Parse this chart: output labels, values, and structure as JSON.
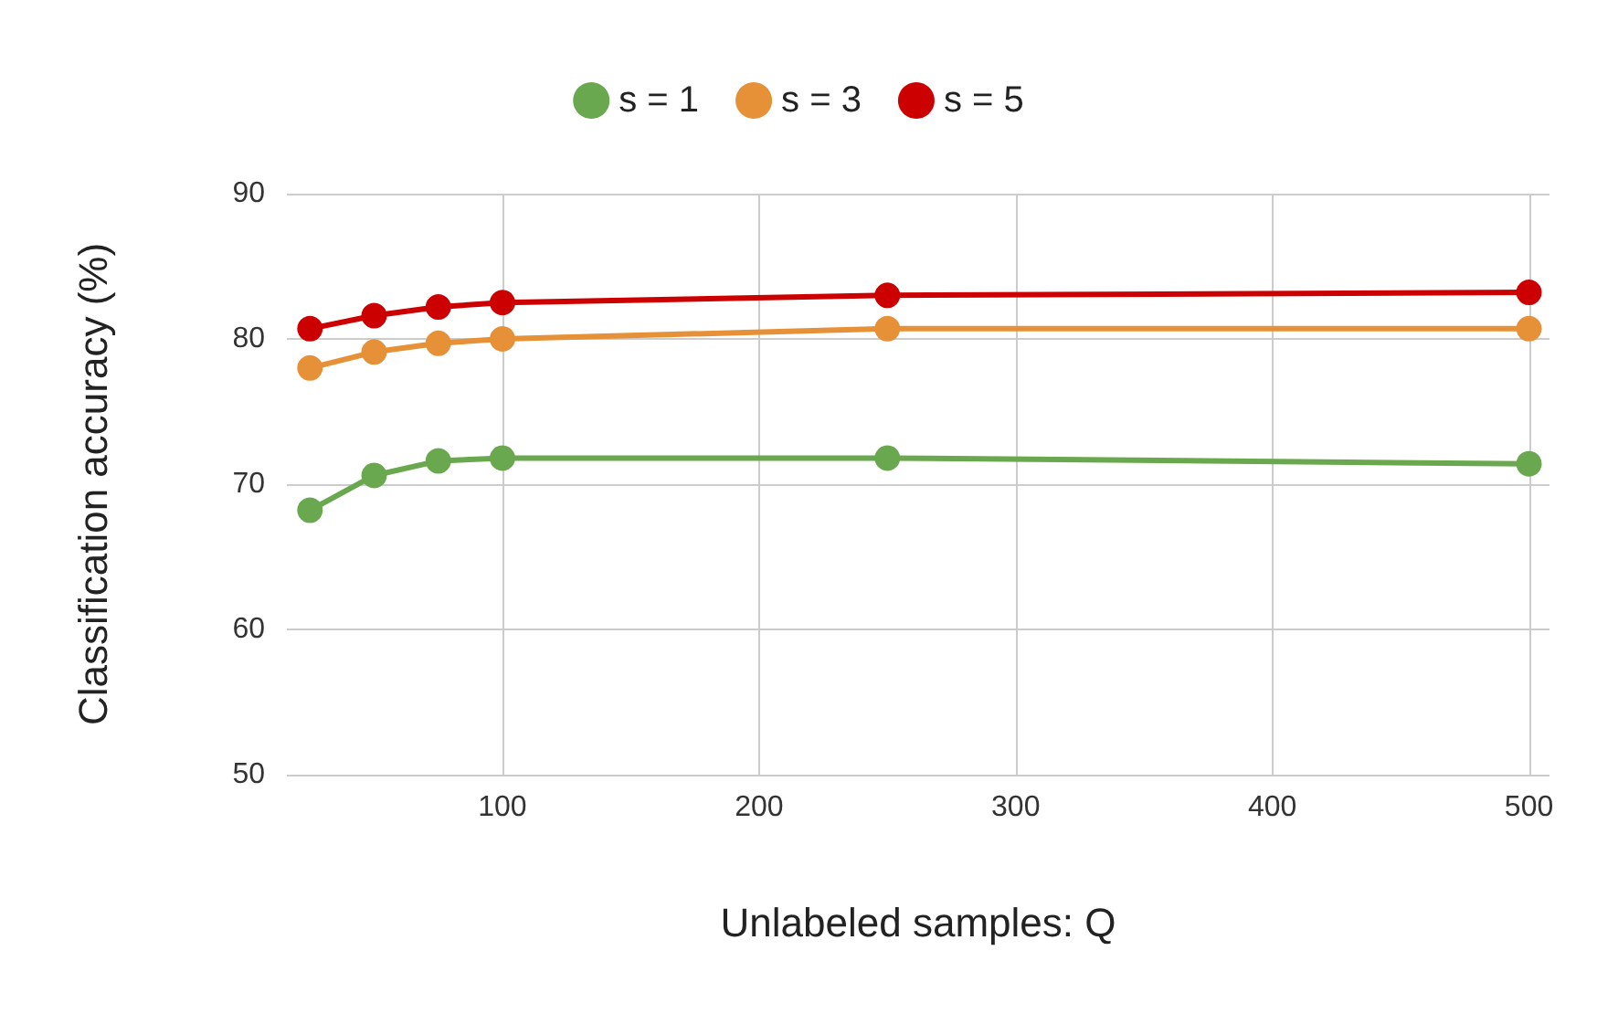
{
  "chart_data": {
    "type": "line",
    "xlabel": "Unlabeled samples: Q",
    "ylabel": "Classification accuracy (%)",
    "x": [
      25,
      50,
      75,
      100,
      250,
      500
    ],
    "series": [
      {
        "name": "s = 1",
        "color": "#6aa84f",
        "values": [
          68.2,
          70.6,
          71.6,
          71.8,
          71.8,
          71.4
        ]
      },
      {
        "name": "s = 3",
        "color": "#e69138",
        "values": [
          78.0,
          79.1,
          79.7,
          80.0,
          80.7,
          80.7
        ]
      },
      {
        "name": "s = 5",
        "color": "#cc0000",
        "values": [
          80.7,
          81.6,
          82.2,
          82.5,
          83.0,
          83.2
        ]
      }
    ],
    "xlim": [
      16,
      508
    ],
    "xticks": [
      100,
      200,
      300,
      400,
      500
    ],
    "ylim": [
      50,
      90
    ],
    "yticks": [
      50,
      60,
      70,
      80,
      90
    ],
    "grid": true,
    "legend": "top",
    "marker": "circle",
    "line_style": "solid"
  }
}
